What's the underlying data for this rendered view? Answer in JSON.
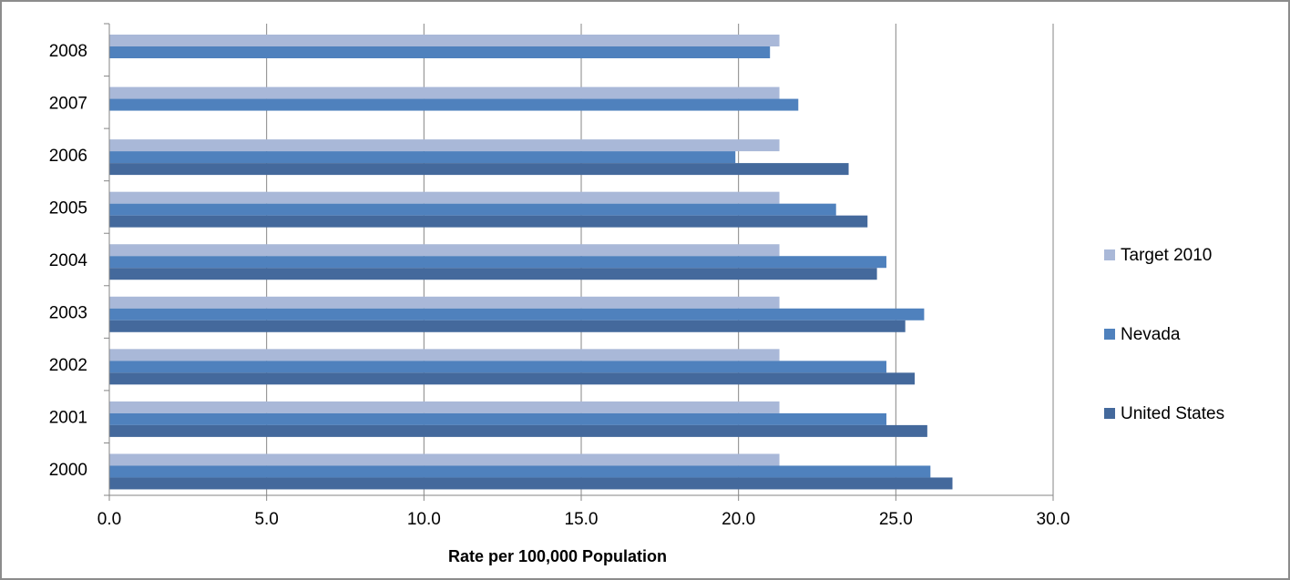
{
  "chart_data": {
    "type": "bar",
    "orientation": "horizontal",
    "categories": [
      "2000",
      "2001",
      "2002",
      "2003",
      "2004",
      "2005",
      "2006",
      "2007",
      "2008"
    ],
    "series": [
      {
        "name": "United States",
        "color": "#44699c",
        "values": [
          26.8,
          26.0,
          25.6,
          25.3,
          24.4,
          24.1,
          23.5,
          null,
          null
        ]
      },
      {
        "name": "Nevada",
        "color": "#4f81bd",
        "values": [
          26.1,
          24.7,
          24.7,
          25.9,
          24.7,
          23.1,
          19.9,
          21.9,
          21.0
        ]
      },
      {
        "name": "Target 2010",
        "color": "#a9b8d8",
        "values": [
          21.3,
          21.3,
          21.3,
          21.3,
          21.3,
          21.3,
          21.3,
          21.3,
          21.3
        ]
      }
    ],
    "title": "",
    "xlabel": "Rate per 100,000 Population",
    "ylabel": "",
    "xlim": [
      0,
      30
    ],
    "xticks": [
      "0.0",
      "5.0",
      "10.0",
      "15.0",
      "20.0",
      "25.0",
      "30.0"
    ],
    "grid": "vertical major gridlines",
    "legend_position": "right",
    "legend_order": [
      "Target 2010",
      "Nevada",
      "United States"
    ]
  }
}
